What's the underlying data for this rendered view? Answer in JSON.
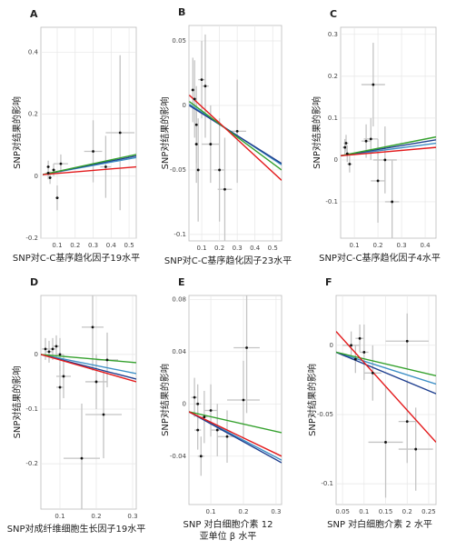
{
  "chart_data": [
    {
      "type": "scatter",
      "label": "A",
      "ylabel": "SNP对结果的影响",
      "xlabel": [
        "SNP对C-C基序趋化因子19水平"
      ],
      "xlim": [
        0.009,
        0.54
      ],
      "ylim": [
        -0.2,
        0.48
      ],
      "xticks": [
        0.1,
        0.2,
        0.3,
        0.4,
        0.5
      ],
      "yticks": [
        -0.2,
        0,
        0.2,
        0.4
      ],
      "grid": true,
      "x": [
        0.05,
        0.05,
        0.06,
        0.08,
        0.1,
        0.12,
        0.3,
        0.37,
        0.45
      ],
      "values": [
        0.03,
        0.01,
        -0.005,
        0.02,
        -0.07,
        0.04,
        0.08,
        0.03,
        0.14
      ],
      "x_err": [
        0.01,
        0.01,
        0.01,
        0.01,
        0.01,
        0.04,
        0.05,
        0.03,
        0.08
      ],
      "y_err": [
        0.02,
        0.02,
        0.02,
        0.02,
        0.04,
        0.03,
        0.1,
        0.1,
        0.25
      ],
      "lines": [
        {
          "color": "#3d8fc6",
          "x": [
            0.02,
            0.54
          ],
          "values": [
            0.005,
            0.06
          ]
        },
        {
          "color": "#1f3f8f",
          "x": [
            0.02,
            0.54
          ],
          "values": [
            0.005,
            0.065
          ]
        },
        {
          "color": "#33a02c",
          "x": [
            0.02,
            0.54
          ],
          "values": [
            0.005,
            0.07
          ]
        },
        {
          "color": "#e31a1c",
          "x": [
            0.02,
            0.54
          ],
          "values": [
            0.005,
            0.03
          ]
        }
      ]
    },
    {
      "type": "scatter",
      "label": "B",
      "ylabel": "SNP对结果的影响",
      "xlabel": [
        "SNP对C-C基序趋化因子23水平"
      ],
      "xlim": [
        0.028,
        0.55
      ],
      "ylim": [
        -0.105,
        0.062
      ],
      "xticks": [
        0.1,
        0.2,
        0.3,
        0.4,
        0.5
      ],
      "yticks": [
        -0.1,
        -0.05,
        0,
        0.05
      ],
      "grid": true,
      "x": [
        0.05,
        0.06,
        0.07,
        0.07,
        0.08,
        0.1,
        0.12,
        0.15,
        0.2,
        0.23,
        0.3
      ],
      "values": [
        0.012,
        0.005,
        -0.015,
        -0.03,
        -0.05,
        0.02,
        0.015,
        -0.03,
        -0.05,
        -0.065,
        -0.02
      ],
      "x_err": [
        0.01,
        0.01,
        0.01,
        0.01,
        0.01,
        0.02,
        0.02,
        0.05,
        0.03,
        0.04,
        0.05
      ],
      "y_err": [
        0.025,
        0.03,
        0.03,
        0.03,
        0.04,
        0.03,
        0.04,
        0.03,
        0.04,
        0.04,
        0.04
      ],
      "lines": [
        {
          "color": "#3d8fc6",
          "x": [
            0.03,
            0.55
          ],
          "values": [
            0.001,
            -0.046
          ]
        },
        {
          "color": "#1f3f8f",
          "x": [
            0.03,
            0.55
          ],
          "values": [
            0,
            -0.045
          ]
        },
        {
          "color": "#33a02c",
          "x": [
            0.03,
            0.55
          ],
          "values": [
            0.003,
            -0.05
          ]
        },
        {
          "color": "#e31a1c",
          "x": [
            0.03,
            0.55
          ],
          "values": [
            0.008,
            -0.058
          ]
        }
      ]
    },
    {
      "type": "scatter",
      "label": "C",
      "ylabel": "SNP对结果的影响",
      "xlabel": [
        "SNP对C-C基序趋化因子4水平"
      ],
      "xlim": [
        0.042,
        0.446
      ],
      "ylim": [
        -0.187,
        0.317
      ],
      "xticks": [
        0.1,
        0.2,
        0.3,
        0.4
      ],
      "yticks": [
        -0.1,
        0,
        0.1,
        0.2,
        0.3
      ],
      "grid": true,
      "x": [
        0.06,
        0.065,
        0.07,
        0.08,
        0.15,
        0.17,
        0.18,
        0.2,
        0.23,
        0.26
      ],
      "values": [
        0.03,
        0.04,
        0.015,
        -0.01,
        0.045,
        0.05,
        0.18,
        -0.05,
        0,
        -0.1
      ],
      "x_err": [
        0.01,
        0.01,
        0.01,
        0.01,
        0.02,
        0.03,
        0.05,
        0.03,
        0.05,
        0.03
      ],
      "y_err": [
        0.02,
        0.02,
        0.02,
        0.02,
        0.04,
        0.05,
        0.1,
        0.1,
        0.08,
        0.1
      ],
      "lines": [
        {
          "color": "#3d8fc6",
          "x": [
            0.042,
            0.446
          ],
          "values": [
            0.01,
            0.04
          ]
        },
        {
          "color": "#1f3f8f",
          "x": [
            0.042,
            0.446
          ],
          "values": [
            0.01,
            0.048
          ]
        },
        {
          "color": "#33a02c",
          "x": [
            0.042,
            0.446
          ],
          "values": [
            0.01,
            0.055
          ]
        },
        {
          "color": "#e31a1c",
          "x": [
            0.042,
            0.446
          ],
          "values": [
            0.01,
            0.03
          ]
        }
      ]
    },
    {
      "type": "scatter",
      "label": "D",
      "ylabel": "SNP对结果的影响",
      "xlabel": [
        "SNP对成纤维细胞生长因子19水平"
      ],
      "xlim": [
        0.0475,
        0.31
      ],
      "ylim": [
        -0.283,
        0.108
      ],
      "xticks": [
        0.1,
        0.2,
        0.3
      ],
      "yticks": [
        -0.2,
        -0.1,
        0
      ],
      "grid": true,
      "x": [
        0.06,
        0.07,
        0.08,
        0.09,
        0.1,
        0.1,
        0.11,
        0.16,
        0.19,
        0.2,
        0.22,
        0.23
      ],
      "values": [
        0.01,
        0.005,
        0.01,
        0.015,
        -0.06,
        0,
        -0.04,
        -0.19,
        0.05,
        -0.05,
        -0.11,
        -0.01
      ],
      "x_err": [
        0.01,
        0.01,
        0.01,
        0.01,
        0.01,
        0.01,
        0.02,
        0.05,
        0.03,
        0.03,
        0.05,
        0.03
      ],
      "y_err": [
        0.02,
        0.02,
        0.02,
        0.02,
        0.04,
        0.03,
        0.04,
        0.1,
        0.08,
        0.05,
        0.08,
        0.05
      ],
      "lines": [
        {
          "color": "#3d8fc6",
          "x": [
            0.0475,
            0.31
          ],
          "values": [
            0,
            -0.035
          ]
        },
        {
          "color": "#1f3f8f",
          "x": [
            0.0475,
            0.31
          ],
          "values": [
            0,
            -0.045
          ]
        },
        {
          "color": "#33a02c",
          "x": [
            0.0475,
            0.31
          ],
          "values": [
            0,
            -0.015
          ]
        },
        {
          "color": "#e31a1c",
          "x": [
            0.0475,
            0.31
          ],
          "values": [
            0,
            -0.05
          ]
        }
      ]
    },
    {
      "type": "scatter",
      "label": "E",
      "ylabel": "SNP对结果的影响",
      "xlabel": [
        "SNP 对白细胞介素 12",
        "亚单位 β 水平"
      ],
      "xlim": [
        0.033,
        0.317
      ],
      "ylim": [
        -0.077,
        0.083
      ],
      "xticks": [
        0.1,
        0.2,
        0.3
      ],
      "yticks": [
        -0.04,
        0,
        0.04,
        0.08
      ],
      "grid": true,
      "x": [
        0.05,
        0.06,
        0.06,
        0.07,
        0.08,
        0.1,
        0.12,
        0.15,
        0.2,
        0.21
      ],
      "values": [
        0.005,
        0,
        -0.02,
        -0.04,
        -0.01,
        -0.005,
        -0.02,
        -0.025,
        0.003,
        0.043
      ],
      "x_err": [
        0.01,
        0.01,
        0.01,
        0.01,
        0.01,
        0.02,
        0.02,
        0.03,
        0.05,
        0.04
      ],
      "y_err": [
        0.015,
        0.015,
        0.015,
        0.015,
        0.02,
        0.02,
        0.02,
        0.02,
        0.03,
        0.05
      ],
      "lines": [
        {
          "color": "#3d8fc6",
          "x": [
            0.033,
            0.317
          ],
          "values": [
            -0.006,
            -0.043
          ]
        },
        {
          "color": "#1f3f8f",
          "x": [
            0.033,
            0.317
          ],
          "values": [
            -0.006,
            -0.045
          ]
        },
        {
          "color": "#33a02c",
          "x": [
            0.033,
            0.317
          ],
          "values": [
            -0.006,
            -0.022
          ]
        },
        {
          "color": "#e31a1c",
          "x": [
            0.033,
            0.317
          ],
          "values": [
            -0.006,
            -0.04
          ]
        }
      ]
    },
    {
      "type": "scatter",
      "label": "F",
      "ylabel": "SNP对结果的影响",
      "xlabel": [
        "SNP 对白细胞介素 2 水平"
      ],
      "xlim": [
        0.035,
        0.267
      ],
      "ylim": [
        -0.115,
        0.036
      ],
      "xticks": [
        0.05,
        0.1,
        0.15,
        0.2,
        0.25
      ],
      "yticks": [
        -0.1,
        -0.05,
        0
      ],
      "grid": true,
      "x": [
        0.07,
        0.08,
        0.09,
        0.1,
        0.12,
        0.15,
        0.2,
        0.2,
        0.22
      ],
      "values": [
        0,
        -0.01,
        0.005,
        -0.005,
        -0.02,
        -0.07,
        0.003,
        -0.055,
        -0.075
      ],
      "x_err": [
        0.02,
        0.01,
        0.01,
        0.01,
        0.02,
        0.04,
        0.05,
        0.02,
        0.04
      ],
      "y_err": [
        0.01,
        0.01,
        0.01,
        0.02,
        0.02,
        0.04,
        0.02,
        0.03,
        0.03
      ],
      "lines": [
        {
          "color": "#3d8fc6",
          "x": [
            0.035,
            0.267
          ],
          "values": [
            -0.005,
            -0.028
          ]
        },
        {
          "color": "#1f3f8f",
          "x": [
            0.035,
            0.267
          ],
          "values": [
            -0.005,
            -0.035
          ]
        },
        {
          "color": "#33a02c",
          "x": [
            0.035,
            0.267
          ],
          "values": [
            -0.005,
            -0.022
          ]
        },
        {
          "color": "#e31a1c",
          "x": [
            0.035,
            0.267
          ],
          "values": [
            0.01,
            -0.07
          ]
        }
      ]
    }
  ]
}
